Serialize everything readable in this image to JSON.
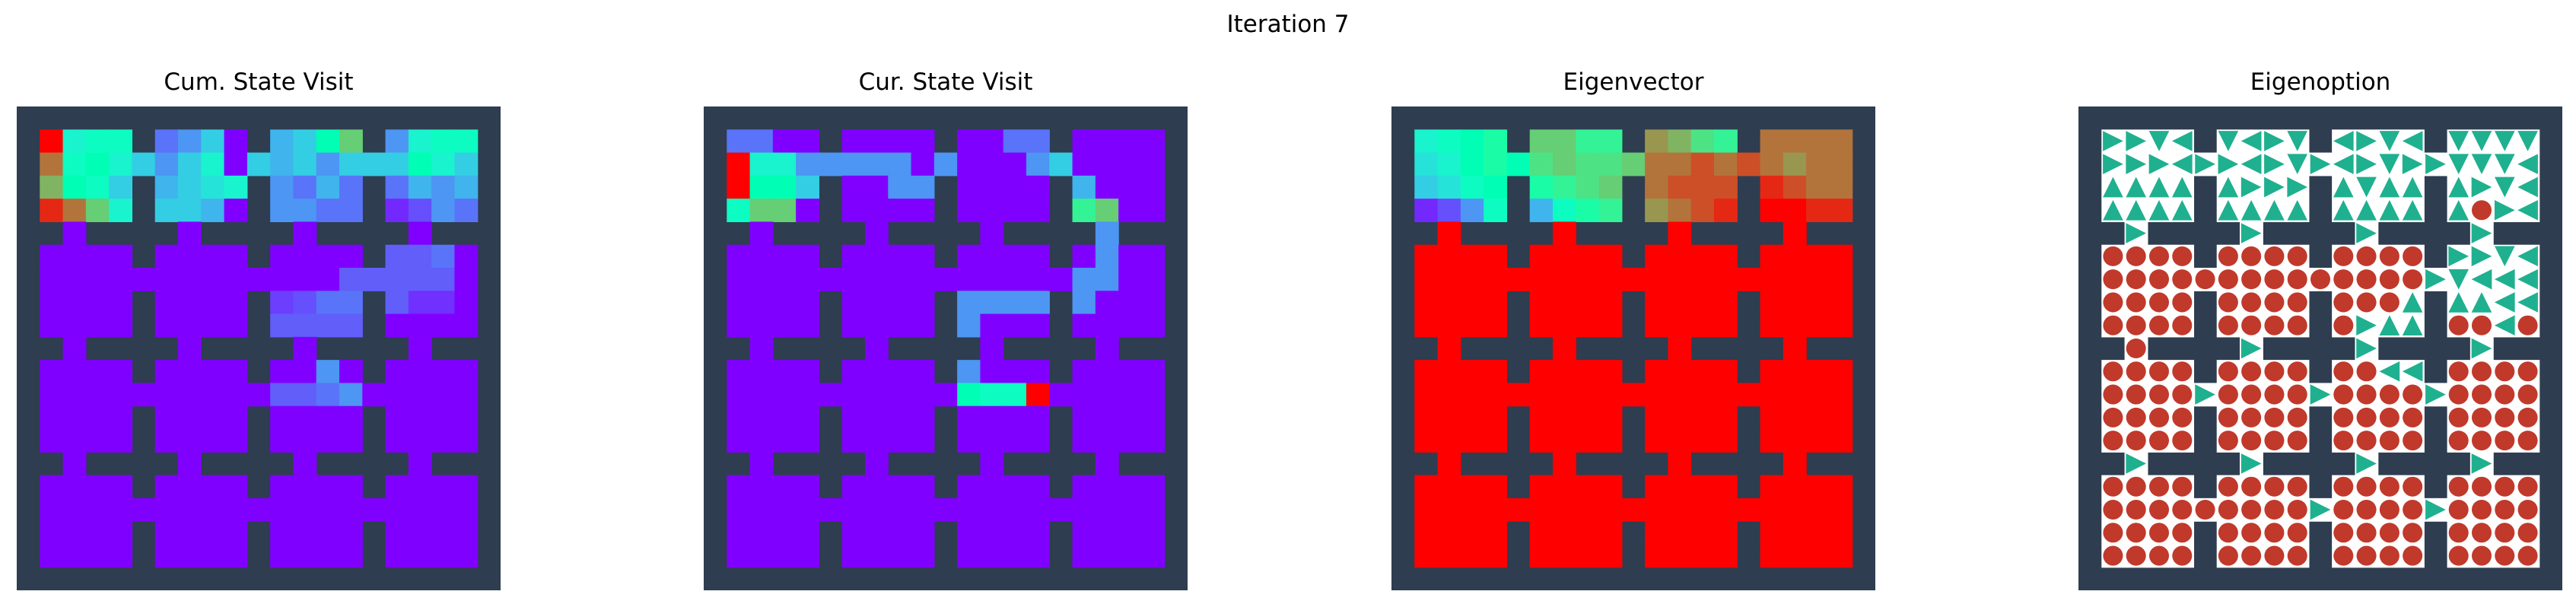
{
  "figure": {
    "suptitle": "Iteration 7"
  },
  "colors": {
    "wall": "#2e3d50",
    "open_floor": "#ffffff",
    "arrow": "#1fb08f",
    "terminal": "#c0392b"
  },
  "colormap": "rainbow",
  "chart_data": [
    {
      "type": "heatmap",
      "title": "Cum. State Visit",
      "grid_size": [
        21,
        21
      ],
      "layout": "4x4 rooms of 4x4 cells separated by walls with doorways",
      "legend": "none",
      "values_note": "normalized 0-1 colormap values; cells not listed are 0.0; wall cells not drawn",
      "cells": [
        [
          1,
          1,
          1.0
        ],
        [
          1,
          2,
          0.4
        ],
        [
          1,
          3,
          0.45
        ],
        [
          1,
          4,
          0.45
        ],
        [
          1,
          6,
          0.15
        ],
        [
          1,
          7,
          0.2
        ],
        [
          1,
          8,
          0.3
        ],
        [
          1,
          11,
          0.25
        ],
        [
          1,
          12,
          0.3
        ],
        [
          1,
          13,
          0.5
        ],
        [
          1,
          14,
          0.7
        ],
        [
          1,
          16,
          0.2
        ],
        [
          1,
          17,
          0.4
        ],
        [
          1,
          18,
          0.45
        ],
        [
          1,
          19,
          0.45
        ],
        [
          2,
          1,
          0.85
        ],
        [
          2,
          2,
          0.45
        ],
        [
          2,
          3,
          0.5
        ],
        [
          2,
          4,
          0.4
        ],
        [
          2,
          5,
          0.3
        ],
        [
          2,
          6,
          0.2
        ],
        [
          2,
          7,
          0.3
        ],
        [
          2,
          8,
          0.4
        ],
        [
          2,
          10,
          0.3
        ],
        [
          2,
          11,
          0.25
        ],
        [
          2,
          12,
          0.3
        ],
        [
          2,
          13,
          0.2
        ],
        [
          2,
          14,
          0.3
        ],
        [
          2,
          15,
          0.3
        ],
        [
          2,
          16,
          0.3
        ],
        [
          2,
          17,
          0.5
        ],
        [
          2,
          18,
          0.4
        ],
        [
          2,
          19,
          0.3
        ],
        [
          3,
          1,
          0.75
        ],
        [
          3,
          2,
          0.5
        ],
        [
          3,
          3,
          0.45
        ],
        [
          3,
          4,
          0.3
        ],
        [
          3,
          6,
          0.25
        ],
        [
          3,
          7,
          0.3
        ],
        [
          3,
          8,
          0.35
        ],
        [
          3,
          9,
          0.4
        ],
        [
          3,
          11,
          0.2
        ],
        [
          3,
          12,
          0.15
        ],
        [
          3,
          13,
          0.25
        ],
        [
          3,
          14,
          0.15
        ],
        [
          3,
          16,
          0.15
        ],
        [
          3,
          17,
          0.25
        ],
        [
          3,
          18,
          0.2
        ],
        [
          3,
          19,
          0.25
        ],
        [
          4,
          1,
          0.95
        ],
        [
          4,
          2,
          0.85
        ],
        [
          4,
          3,
          0.7
        ],
        [
          4,
          4,
          0.4
        ],
        [
          4,
          6,
          0.3
        ],
        [
          4,
          7,
          0.3
        ],
        [
          4,
          8,
          0.25
        ],
        [
          4,
          11,
          0.2
        ],
        [
          4,
          12,
          0.2
        ],
        [
          4,
          13,
          0.15
        ],
        [
          4,
          14,
          0.15
        ],
        [
          4,
          16,
          0.05
        ],
        [
          4,
          17,
          0.1
        ],
        [
          4,
          18,
          0.2
        ],
        [
          4,
          19,
          0.15
        ],
        [
          5,
          18,
          0.1
        ],
        [
          6,
          16,
          0.12
        ],
        [
          6,
          17,
          0.12
        ],
        [
          6,
          18,
          0.15
        ],
        [
          7,
          14,
          0.12
        ],
        [
          7,
          15,
          0.12
        ],
        [
          7,
          16,
          0.12
        ],
        [
          7,
          17,
          0.12
        ],
        [
          7,
          18,
          0.12
        ],
        [
          8,
          11,
          0.08
        ],
        [
          8,
          12,
          0.1
        ],
        [
          8,
          13,
          0.15
        ],
        [
          8,
          14,
          0.15
        ],
        [
          8,
          15,
          0.12
        ],
        [
          8,
          16,
          0.12
        ],
        [
          8,
          17,
          0.06
        ],
        [
          8,
          18,
          0.06
        ],
        [
          9,
          10,
          0.08
        ],
        [
          9,
          11,
          0.12
        ],
        [
          9,
          12,
          0.12
        ],
        [
          9,
          13,
          0.12
        ],
        [
          9,
          14,
          0.12
        ],
        [
          10,
          13,
          0.15
        ],
        [
          11,
          13,
          0.2
        ],
        [
          12,
          11,
          0.12
        ],
        [
          12,
          12,
          0.12
        ],
        [
          12,
          13,
          0.15
        ],
        [
          12,
          14,
          0.2
        ]
      ]
    },
    {
      "type": "heatmap",
      "title": "Cur. State Visit",
      "grid_size": [
        21,
        21
      ],
      "legend": "none",
      "values_note": "normalized 0-1 colormap values; cells not listed are 0.0; wall cells not drawn",
      "cells": [
        [
          1,
          1,
          0.15
        ],
        [
          1,
          2,
          0.15
        ],
        [
          1,
          13,
          0.15
        ],
        [
          1,
          14,
          0.15
        ],
        [
          2,
          1,
          1.0
        ],
        [
          2,
          2,
          0.4
        ],
        [
          2,
          3,
          0.4
        ],
        [
          2,
          4,
          0.2
        ],
        [
          2,
          5,
          0.2
        ],
        [
          2,
          6,
          0.2
        ],
        [
          2,
          7,
          0.2
        ],
        [
          2,
          8,
          0.2
        ],
        [
          2,
          10,
          0.2
        ],
        [
          2,
          14,
          0.2
        ],
        [
          2,
          15,
          0.3
        ],
        [
          3,
          1,
          1.0
        ],
        [
          3,
          2,
          0.5
        ],
        [
          3,
          3,
          0.5
        ],
        [
          3,
          4,
          0.3
        ],
        [
          3,
          8,
          0.2
        ],
        [
          3,
          9,
          0.2
        ],
        [
          3,
          10,
          0.2
        ],
        [
          3,
          16,
          0.25
        ],
        [
          4,
          1,
          0.45
        ],
        [
          4,
          2,
          0.7
        ],
        [
          4,
          3,
          0.7
        ],
        [
          4,
          16,
          0.6
        ],
        [
          4,
          17,
          0.7
        ],
        [
          5,
          17,
          0.2
        ],
        [
          6,
          17,
          0.2
        ],
        [
          7,
          16,
          0.2
        ],
        [
          7,
          17,
          0.2
        ],
        [
          8,
          11,
          0.2
        ],
        [
          8,
          12,
          0.2
        ],
        [
          8,
          13,
          0.2
        ],
        [
          8,
          14,
          0.2
        ],
        [
          8,
          15,
          0.2
        ],
        [
          8,
          16,
          0.2
        ],
        [
          9,
          11,
          0.2
        ],
        [
          10,
          11,
          0.2
        ],
        [
          11,
          11,
          0.2
        ],
        [
          12,
          11,
          0.5
        ],
        [
          12,
          12,
          0.45
        ],
        [
          12,
          13,
          0.45
        ],
        [
          12,
          14,
          1.0
        ]
      ]
    },
    {
      "type": "heatmap",
      "title": "Eigenvector",
      "grid_size": [
        21,
        21
      ],
      "legend": "none",
      "values_note": "normalized 0-1 colormap values; open cells not listed are 1.0; wall cells not drawn",
      "cells": [
        [
          1,
          1,
          0.4
        ],
        [
          1,
          2,
          0.45
        ],
        [
          1,
          3,
          0.5
        ],
        [
          1,
          4,
          0.55
        ],
        [
          1,
          6,
          0.7
        ],
        [
          1,
          7,
          0.7
        ],
        [
          1,
          8,
          0.6
        ],
        [
          1,
          9,
          0.6
        ],
        [
          1,
          11,
          0.8
        ],
        [
          1,
          12,
          0.75
        ],
        [
          1,
          13,
          0.65
        ],
        [
          1,
          14,
          0.6
        ],
        [
          1,
          16,
          0.85
        ],
        [
          1,
          17,
          0.85
        ],
        [
          1,
          18,
          0.85
        ],
        [
          1,
          19,
          0.85
        ],
        [
          2,
          1,
          0.35
        ],
        [
          2,
          2,
          0.4
        ],
        [
          2,
          3,
          0.5
        ],
        [
          2,
          4,
          0.55
        ],
        [
          2,
          5,
          0.5
        ],
        [
          2,
          6,
          0.65
        ],
        [
          2,
          7,
          0.7
        ],
        [
          2,
          8,
          0.65
        ],
        [
          2,
          9,
          0.65
        ],
        [
          2,
          10,
          0.7
        ],
        [
          2,
          11,
          0.85
        ],
        [
          2,
          12,
          0.85
        ],
        [
          2,
          13,
          0.9
        ],
        [
          2,
          14,
          0.85
        ],
        [
          2,
          15,
          0.9
        ],
        [
          2,
          16,
          0.85
        ],
        [
          2,
          17,
          0.8
        ],
        [
          2,
          18,
          0.85
        ],
        [
          2,
          19,
          0.85
        ],
        [
          3,
          1,
          0.3
        ],
        [
          3,
          2,
          0.35
        ],
        [
          3,
          3,
          0.45
        ],
        [
          3,
          4,
          0.5
        ],
        [
          3,
          6,
          0.55
        ],
        [
          3,
          7,
          0.6
        ],
        [
          3,
          8,
          0.65
        ],
        [
          3,
          9,
          0.7
        ],
        [
          3,
          11,
          0.85
        ],
        [
          3,
          12,
          0.9
        ],
        [
          3,
          13,
          0.9
        ],
        [
          3,
          14,
          0.9
        ],
        [
          3,
          16,
          0.95
        ],
        [
          3,
          17,
          0.9
        ],
        [
          3,
          18,
          0.85
        ],
        [
          3,
          19,
          0.85
        ],
        [
          4,
          1,
          0.05
        ],
        [
          4,
          2,
          0.1
        ],
        [
          4,
          3,
          0.2
        ],
        [
          4,
          4,
          0.45
        ],
        [
          4,
          6,
          0.25
        ],
        [
          4,
          7,
          0.45
        ],
        [
          4,
          8,
          0.55
        ],
        [
          4,
          9,
          0.6
        ],
        [
          4,
          11,
          0.8
        ],
        [
          4,
          12,
          0.85
        ],
        [
          4,
          13,
          0.9
        ],
        [
          4,
          14,
          0.95
        ],
        [
          4,
          16,
          1.0
        ],
        [
          4,
          17,
          1.0
        ],
        [
          4,
          18,
          0.95
        ],
        [
          4,
          19,
          0.95
        ]
      ]
    },
    {
      "type": "table",
      "title": "Eigenoption",
      "grid_size": [
        21,
        21
      ],
      "legend": "none",
      "encoding": "per-state marker: triangle = action direction (up/down/left/right), circle = terminate",
      "rows": [
        ". . . . . . . . . . . . . . . . . . . . .",
        ". R R D L . D L R D . L R D L . D D D D .",
        ". R R R L R R L R D R L R D R R D D D L .",
        ". U U U U . U R R R . U D U U . U R D L .",
        ". U U U U . U U U U . U U U U . U T R L .",
        ". . . . . . . . . . . . . . . . . . U . .",
        ". T T T T . T T T T . T T T T . R R D L .",
        ". T T T T T T T T T T T T T T R D L L L .",
        ". T T T T . T T T T . T T T U . U U L L .",
        ". T T T T . T T T T . T R U U . T T L T .",
        ". . T . . . . . . . . . . U . . . . T . .",
        ". T T T T . T T T T . T T L L . T T T T .",
        ". T T T T . T T T T . T T T T . T T T T .",
        ". T T T T . T T T T T T T T T . T T T T .",
        ". T T T T . T T T T . T T T T T T T T T .",
        ". . . T . . . . . . . . . . . . T . . . .",
        ". T T T T . T T T T . T T T T . T T T T .",
        ". T T T T T T T T T . T T T T . T T T T .",
        ". T T T T . T T T T . T T T T T T T T T .",
        ". T T T T . T T T T T T T T T . T T T T .",
        ". . . . . . . . . . . . . . . . . . . . ."
      ]
    }
  ]
}
